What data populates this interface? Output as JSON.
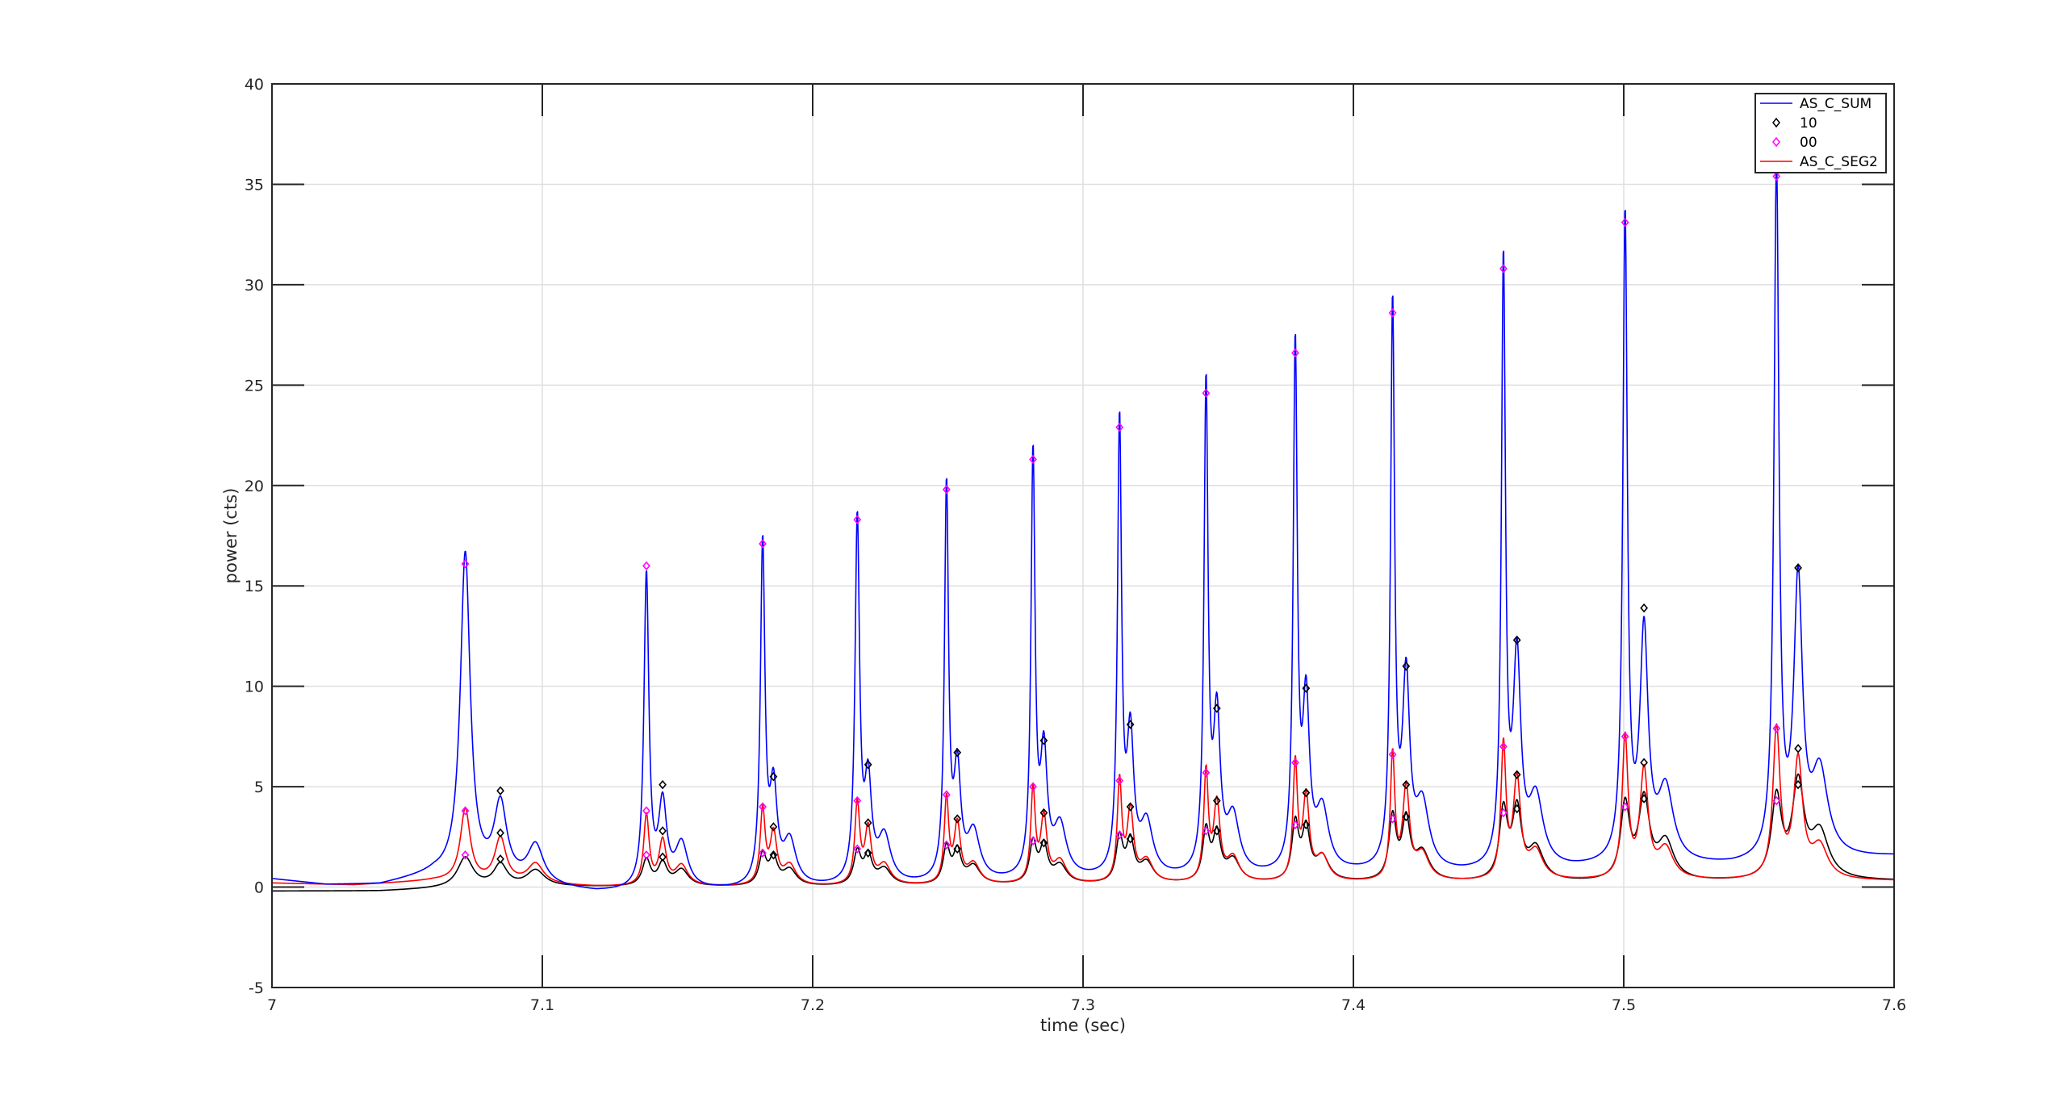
{
  "chart_data": {
    "type": "line",
    "xlabel": "time (sec)",
    "ylabel": "power (cts)",
    "xlim": [
      7.0,
      7.6
    ],
    "ylim": [
      -5,
      40
    ],
    "x_ticks": [
      "7",
      "7.1",
      "7.2",
      "7.3",
      "7.4",
      "7.5",
      "7.6"
    ],
    "y_ticks": [
      "-5",
      "0",
      "5",
      "10",
      "15",
      "20",
      "25",
      "30",
      "35",
      "40"
    ],
    "grid": true,
    "legend_position": "top-right",
    "legend": [
      "AS_C_SUM",
      "10",
      "00",
      "AS_C_SEG2"
    ],
    "colors": {
      "sum": "#0000ff",
      "seg2": "#ff0000",
      "seg1": "#000000",
      "marker10": "#000000",
      "marker00": "#ff00ff"
    },
    "series": [
      {
        "name": "AS_C_SUM",
        "style": "line",
        "baseline": [
          [
            7.0,
            0.4
          ],
          [
            7.02,
            0.1
          ],
          [
            7.04,
            0.1
          ],
          [
            7.06,
            0.6
          ],
          [
            7.12,
            -0.3
          ],
          [
            7.17,
            -0.2
          ],
          [
            7.2,
            -0.1
          ],
          [
            7.23,
            0.0
          ],
          [
            7.26,
            0.1
          ],
          [
            7.29,
            0.3
          ],
          [
            7.32,
            0.3
          ],
          [
            7.36,
            0.4
          ],
          [
            7.4,
            0.6
          ],
          [
            7.44,
            0.6
          ],
          [
            7.48,
            0.8
          ],
          [
            7.5,
            1.0
          ],
          [
            7.54,
            1.0
          ],
          [
            7.6,
            1.5
          ]
        ],
        "peaks": [
          {
            "t": 7.0715,
            "h": 16.1,
            "w": 0.0022
          },
          {
            "t": 7.0845,
            "h": 3.7,
            "w": 0.0028
          },
          {
            "t": 7.0975,
            "h": 1.9,
            "w": 0.0035
          },
          {
            "t": 7.1385,
            "h": 15.6,
            "w": 0.0011
          },
          {
            "t": 7.1445,
            "h": 4.1,
            "w": 0.0018
          },
          {
            "t": 7.1515,
            "h": 2.2,
            "w": 0.0028
          },
          {
            "t": 7.1815,
            "h": 16.9,
            "w": 0.001
          },
          {
            "t": 7.1855,
            "h": 4.6,
            "w": 0.0016
          },
          {
            "t": 7.1915,
            "h": 2.2,
            "w": 0.0028
          },
          {
            "t": 7.2165,
            "h": 18.0,
            "w": 0.001
          },
          {
            "t": 7.2205,
            "h": 4.8,
            "w": 0.0015
          },
          {
            "t": 7.2265,
            "h": 2.3,
            "w": 0.0028
          },
          {
            "t": 7.2495,
            "h": 19.5,
            "w": 0.0009
          },
          {
            "t": 7.2535,
            "h": 5.3,
            "w": 0.0015
          },
          {
            "t": 7.2595,
            "h": 2.4,
            "w": 0.0028
          },
          {
            "t": 7.2815,
            "h": 20.9,
            "w": 0.0009
          },
          {
            "t": 7.2855,
            "h": 5.9,
            "w": 0.0015
          },
          {
            "t": 7.2915,
            "h": 2.5,
            "w": 0.0028
          },
          {
            "t": 7.3135,
            "h": 22.4,
            "w": 0.0009
          },
          {
            "t": 7.3175,
            "h": 6.7,
            "w": 0.0015
          },
          {
            "t": 7.3235,
            "h": 2.6,
            "w": 0.0028
          },
          {
            "t": 7.3455,
            "h": 24.1,
            "w": 0.0009
          },
          {
            "t": 7.3495,
            "h": 7.5,
            "w": 0.0015
          },
          {
            "t": 7.3555,
            "h": 2.8,
            "w": 0.0028
          },
          {
            "t": 7.3785,
            "h": 25.9,
            "w": 0.0009
          },
          {
            "t": 7.3825,
            "h": 8.1,
            "w": 0.0015
          },
          {
            "t": 7.3885,
            "h": 3.0,
            "w": 0.0028
          },
          {
            "t": 7.4145,
            "h": 27.9,
            "w": 0.0009
          },
          {
            "t": 7.4195,
            "h": 9.2,
            "w": 0.0016
          },
          {
            "t": 7.4255,
            "h": 3.2,
            "w": 0.003
          },
          {
            "t": 7.4555,
            "h": 29.9,
            "w": 0.0009
          },
          {
            "t": 7.4605,
            "h": 10.1,
            "w": 0.0017
          },
          {
            "t": 7.4675,
            "h": 3.4,
            "w": 0.0032
          },
          {
            "t": 7.5005,
            "h": 32.0,
            "w": 0.001
          },
          {
            "t": 7.5075,
            "h": 11.2,
            "w": 0.0018
          },
          {
            "t": 7.5155,
            "h": 3.6,
            "w": 0.0034
          },
          {
            "t": 7.5565,
            "h": 34.3,
            "w": 0.0011
          },
          {
            "t": 7.5645,
            "h": 13.5,
            "w": 0.0019
          },
          {
            "t": 7.5725,
            "h": 4.2,
            "w": 0.0036
          }
        ]
      },
      {
        "name": "AS_C_SEG2",
        "style": "line",
        "baseline": [
          [
            7.0,
            0.2
          ],
          [
            7.03,
            0.1
          ],
          [
            7.06,
            0.3
          ],
          [
            7.12,
            0.0
          ],
          [
            7.2,
            0.0
          ],
          [
            7.3,
            0.1
          ],
          [
            7.4,
            0.2
          ],
          [
            7.5,
            0.3
          ],
          [
            7.6,
            0.3
          ]
        ],
        "peaks": [
          {
            "t": 7.0715,
            "h": 3.6,
            "w": 0.0022
          },
          {
            "t": 7.0845,
            "h": 2.2,
            "w": 0.0025
          },
          {
            "t": 7.0975,
            "h": 1.0,
            "w": 0.0035
          },
          {
            "t": 7.1385,
            "h": 3.5,
            "w": 0.0012
          },
          {
            "t": 7.1445,
            "h": 2.2,
            "w": 0.0016
          },
          {
            "t": 7.1515,
            "h": 1.0,
            "w": 0.0028
          },
          {
            "t": 7.1815,
            "h": 3.7,
            "w": 0.0011
          },
          {
            "t": 7.1855,
            "h": 2.5,
            "w": 0.0015
          },
          {
            "t": 7.1915,
            "h": 1.0,
            "w": 0.0028
          },
          {
            "t": 7.2165,
            "h": 4.0,
            "w": 0.0011
          },
          {
            "t": 7.2205,
            "h": 2.7,
            "w": 0.0014
          },
          {
            "t": 7.2265,
            "h": 1.0,
            "w": 0.0028
          },
          {
            "t": 7.2495,
            "h": 4.2,
            "w": 0.001
          },
          {
            "t": 7.2535,
            "h": 2.9,
            "w": 0.0014
          },
          {
            "t": 7.2595,
            "h": 1.0,
            "w": 0.0028
          },
          {
            "t": 7.2815,
            "h": 4.6,
            "w": 0.001
          },
          {
            "t": 7.2855,
            "h": 3.2,
            "w": 0.0014
          },
          {
            "t": 7.2915,
            "h": 1.1,
            "w": 0.0028
          },
          {
            "t": 7.3135,
            "h": 5.0,
            "w": 0.001
          },
          {
            "t": 7.3175,
            "h": 3.5,
            "w": 0.0014
          },
          {
            "t": 7.3235,
            "h": 1.1,
            "w": 0.0028
          },
          {
            "t": 7.3455,
            "h": 5.4,
            "w": 0.001
          },
          {
            "t": 7.3495,
            "h": 3.8,
            "w": 0.0014
          },
          {
            "t": 7.3555,
            "h": 1.2,
            "w": 0.0028
          },
          {
            "t": 7.3785,
            "h": 5.8,
            "w": 0.001
          },
          {
            "t": 7.3825,
            "h": 4.1,
            "w": 0.0014
          },
          {
            "t": 7.3885,
            "h": 1.2,
            "w": 0.0028
          },
          {
            "t": 7.4145,
            "h": 6.2,
            "w": 0.001
          },
          {
            "t": 7.4195,
            "h": 4.5,
            "w": 0.0015
          },
          {
            "t": 7.4255,
            "h": 1.3,
            "w": 0.003
          },
          {
            "t": 7.4555,
            "h": 6.6,
            "w": 0.0011
          },
          {
            "t": 7.4605,
            "h": 4.9,
            "w": 0.0016
          },
          {
            "t": 7.4675,
            "h": 1.4,
            "w": 0.0032
          },
          {
            "t": 7.5005,
            "h": 7.0,
            "w": 0.0013
          },
          {
            "t": 7.5075,
            "h": 5.3,
            "w": 0.0018
          },
          {
            "t": 7.5155,
            "h": 1.5,
            "w": 0.0034
          },
          {
            "t": 7.5565,
            "h": 7.4,
            "w": 0.0016
          },
          {
            "t": 7.5645,
            "h": 5.8,
            "w": 0.002
          },
          {
            "t": 7.5725,
            "h": 1.6,
            "w": 0.0036
          }
        ]
      },
      {
        "name": "",
        "style": "line",
        "baseline": [
          [
            7.0,
            -0.2
          ],
          [
            7.04,
            -0.2
          ],
          [
            7.06,
            -0.1
          ],
          [
            7.1,
            0.0
          ],
          [
            7.2,
            0.0
          ],
          [
            7.3,
            0.1
          ],
          [
            7.4,
            0.2
          ],
          [
            7.5,
            0.2
          ],
          [
            7.6,
            0.3
          ]
        ],
        "peaks": [
          {
            "t": 7.0715,
            "h": 1.5,
            "w": 0.0035
          },
          {
            "t": 7.0845,
            "h": 1.1,
            "w": 0.003
          },
          {
            "t": 7.0975,
            "h": 0.8,
            "w": 0.004
          },
          {
            "t": 7.1385,
            "h": 1.3,
            "w": 0.0018
          },
          {
            "t": 7.1445,
            "h": 1.1,
            "w": 0.002
          },
          {
            "t": 7.1515,
            "h": 0.8,
            "w": 0.003
          },
          {
            "t": 7.1815,
            "h": 1.5,
            "w": 0.0016
          },
          {
            "t": 7.1855,
            "h": 1.3,
            "w": 0.0018
          },
          {
            "t": 7.1915,
            "h": 0.8,
            "w": 0.003
          },
          {
            "t": 7.2165,
            "h": 1.6,
            "w": 0.0016
          },
          {
            "t": 7.2205,
            "h": 1.4,
            "w": 0.0018
          },
          {
            "t": 7.2265,
            "h": 0.8,
            "w": 0.003
          },
          {
            "t": 7.2495,
            "h": 1.8,
            "w": 0.0015
          },
          {
            "t": 7.2535,
            "h": 1.6,
            "w": 0.0017
          },
          {
            "t": 7.2595,
            "h": 0.9,
            "w": 0.003
          },
          {
            "t": 7.2815,
            "h": 2.0,
            "w": 0.0015
          },
          {
            "t": 7.2855,
            "h": 1.8,
            "w": 0.0017
          },
          {
            "t": 7.2915,
            "h": 0.9,
            "w": 0.003
          },
          {
            "t": 7.3135,
            "h": 2.2,
            "w": 0.0015
          },
          {
            "t": 7.3175,
            "h": 2.0,
            "w": 0.0017
          },
          {
            "t": 7.3235,
            "h": 1.0,
            "w": 0.003
          },
          {
            "t": 7.3455,
            "h": 2.5,
            "w": 0.0015
          },
          {
            "t": 7.3495,
            "h": 2.3,
            "w": 0.0017
          },
          {
            "t": 7.3555,
            "h": 1.1,
            "w": 0.003
          },
          {
            "t": 7.3785,
            "h": 2.8,
            "w": 0.0015
          },
          {
            "t": 7.3825,
            "h": 2.5,
            "w": 0.0017
          },
          {
            "t": 7.3885,
            "h": 1.2,
            "w": 0.003
          },
          {
            "t": 7.4145,
            "h": 3.1,
            "w": 0.0016
          },
          {
            "t": 7.4195,
            "h": 2.9,
            "w": 0.0018
          },
          {
            "t": 7.4255,
            "h": 1.4,
            "w": 0.0032
          },
          {
            "t": 7.4555,
            "h": 3.4,
            "w": 0.0018
          },
          {
            "t": 7.4605,
            "h": 3.4,
            "w": 0.002
          },
          {
            "t": 7.4675,
            "h": 1.6,
            "w": 0.0034
          },
          {
            "t": 7.5005,
            "h": 3.7,
            "w": 0.002
          },
          {
            "t": 7.5075,
            "h": 3.9,
            "w": 0.0024
          },
          {
            "t": 7.5155,
            "h": 1.9,
            "w": 0.0036
          },
          {
            "t": 7.5565,
            "h": 4.0,
            "w": 0.0022
          },
          {
            "t": 7.5645,
            "h": 4.6,
            "w": 0.0026
          },
          {
            "t": 7.5725,
            "h": 2.3,
            "w": 0.004
          }
        ]
      }
    ],
    "markers_10": [
      [
        7.0845,
        4.8
      ],
      [
        7.1445,
        5.1
      ],
      [
        7.1855,
        5.5
      ],
      [
        7.2205,
        6.1
      ],
      [
        7.2535,
        6.7
      ],
      [
        7.2855,
        7.3
      ],
      [
        7.3175,
        8.1
      ],
      [
        7.3495,
        8.9
      ],
      [
        7.3825,
        9.9
      ],
      [
        7.4195,
        11.0
      ],
      [
        7.4605,
        12.3
      ],
      [
        7.5075,
        13.9
      ],
      [
        7.5645,
        15.9
      ],
      [
        7.0845,
        2.7
      ],
      [
        7.1445,
        2.8
      ],
      [
        7.1855,
        3.0
      ],
      [
        7.2205,
        3.2
      ],
      [
        7.2535,
        3.4
      ],
      [
        7.2855,
        3.7
      ],
      [
        7.3175,
        4.0
      ],
      [
        7.3495,
        4.3
      ],
      [
        7.3825,
        4.7
      ],
      [
        7.4195,
        5.1
      ],
      [
        7.4605,
        5.6
      ],
      [
        7.5075,
        6.2
      ],
      [
        7.5645,
        6.9
      ],
      [
        7.0845,
        1.4
      ],
      [
        7.1445,
        1.5
      ],
      [
        7.1855,
        1.6
      ],
      [
        7.2205,
        1.7
      ],
      [
        7.2535,
        1.9
      ],
      [
        7.2855,
        2.2
      ],
      [
        7.3175,
        2.4
      ],
      [
        7.3495,
        2.8
      ],
      [
        7.3825,
        3.1
      ],
      [
        7.4195,
        3.5
      ],
      [
        7.4605,
        3.9
      ],
      [
        7.5075,
        4.4
      ],
      [
        7.5645,
        5.1
      ]
    ],
    "markers_00": [
      [
        7.0715,
        16.1
      ],
      [
        7.1385,
        16.0
      ],
      [
        7.1815,
        17.1
      ],
      [
        7.2165,
        18.3
      ],
      [
        7.2495,
        19.8
      ],
      [
        7.2815,
        21.3
      ],
      [
        7.3135,
        22.9
      ],
      [
        7.3455,
        24.6
      ],
      [
        7.3785,
        26.6
      ],
      [
        7.4145,
        28.6
      ],
      [
        7.4555,
        30.8
      ],
      [
        7.5005,
        33.1
      ],
      [
        7.5565,
        35.4
      ],
      [
        7.0715,
        3.8
      ],
      [
        7.1385,
        3.8
      ],
      [
        7.1815,
        4.0
      ],
      [
        7.2165,
        4.3
      ],
      [
        7.2495,
        4.6
      ],
      [
        7.2815,
        5.0
      ],
      [
        7.3135,
        5.3
      ],
      [
        7.3455,
        5.7
      ],
      [
        7.3785,
        6.2
      ],
      [
        7.4145,
        6.6
      ],
      [
        7.4555,
        7.0
      ],
      [
        7.5005,
        7.5
      ],
      [
        7.5565,
        7.9
      ],
      [
        7.0715,
        1.6
      ],
      [
        7.1385,
        1.6
      ],
      [
        7.1815,
        1.7
      ],
      [
        7.2165,
        1.9
      ],
      [
        7.2495,
        2.1
      ],
      [
        7.2815,
        2.3
      ],
      [
        7.3135,
        2.6
      ],
      [
        7.3455,
        2.8
      ],
      [
        7.3785,
        3.1
      ],
      [
        7.4145,
        3.4
      ],
      [
        7.4555,
        3.7
      ],
      [
        7.5005,
        4.0
      ],
      [
        7.5565,
        4.3
      ]
    ]
  }
}
